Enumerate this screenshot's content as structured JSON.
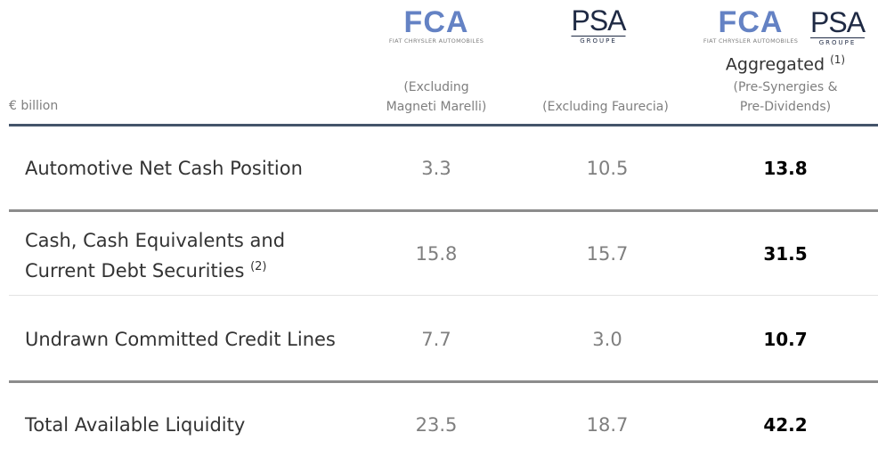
{
  "header": {
    "unit": "€ billion",
    "columns": [
      {
        "logos": [
          {
            "name": "FCA",
            "tagline": "FIAT CHRYSLER AUTOMOBILES"
          }
        ],
        "subtitle": [
          "(Excluding",
          "Magneti Marelli)"
        ]
      },
      {
        "logos": [
          {
            "name": "PSA",
            "tagline": "GROUPE"
          }
        ],
        "subtitle": [
          "(Excluding Faurecia)"
        ]
      },
      {
        "logos": [
          {
            "name": "FCA",
            "tagline": "FIAT CHRYSLER AUTOMOBILES"
          },
          {
            "name": "PSA",
            "tagline": "GROUPE"
          }
        ],
        "title": "Aggregated",
        "title_note": "(1)",
        "subtitle": [
          "(Pre-Synergies &",
          "Pre-Dividends)"
        ]
      }
    ]
  },
  "table": {
    "rows": [
      {
        "label": [
          "Automotive Net Cash Position"
        ],
        "values": [
          "3.3",
          "10.5",
          "13.8"
        ]
      },
      {
        "label": [
          "Cash, Cash Equivalents and",
          "Current Debt Securities"
        ],
        "note": "(2)",
        "values": [
          "15.8",
          "15.7",
          "31.5"
        ]
      },
      {
        "label": [
          "Undrawn Committed Credit Lines"
        ],
        "values": [
          "7.7",
          "3.0",
          "10.7"
        ]
      },
      {
        "label": [
          "Total Available Liquidity"
        ],
        "values": [
          "23.5",
          "18.7",
          "42.2"
        ]
      }
    ]
  }
}
